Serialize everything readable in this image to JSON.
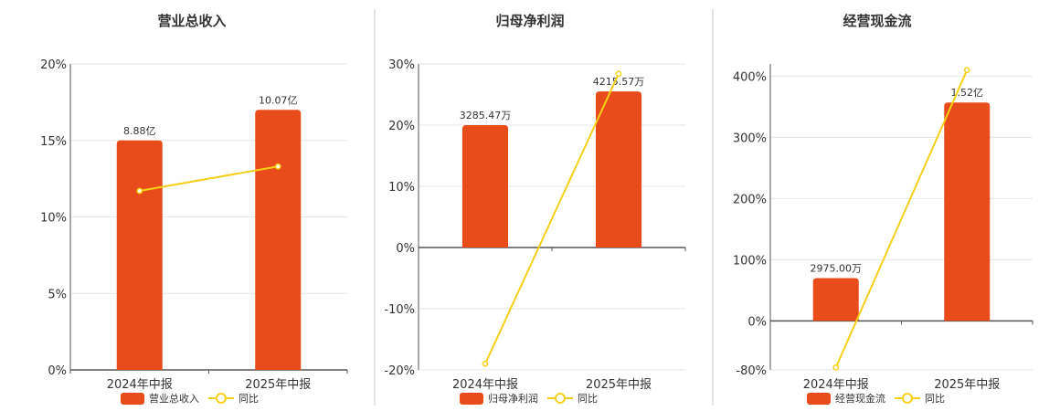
{
  "colors": {
    "bar": "#E84C1A",
    "line": "#F5D018",
    "grid": "#E6E6E6",
    "axis": "#555555",
    "divider": "#C8C8C8"
  },
  "chart_data": [
    {
      "type": "bar",
      "title": "营业总收入",
      "categories": [
        "2024年中报",
        "2025年中报"
      ],
      "ylim": [
        0,
        20
      ],
      "yticks": [
        "0%",
        "5%",
        "10%",
        "15%",
        "20%"
      ],
      "ytick_values": [
        0,
        5,
        10,
        15,
        20
      ],
      "grid": true,
      "series": [
        {
          "name": "营业总收入",
          "type": "bar",
          "values": [
            15,
            17
          ],
          "labels": [
            "8.88亿",
            "10.07亿"
          ]
        },
        {
          "name": "同比",
          "type": "line",
          "values": [
            11.7,
            13.3
          ]
        }
      ],
      "legend": "bottom"
    },
    {
      "type": "bar",
      "title": "归母净利润",
      "categories": [
        "2024年中报",
        "2025年中报"
      ],
      "ylim": [
        -20,
        30
      ],
      "yticks": [
        "-20%",
        "-10%",
        "0%",
        "10%",
        "20%",
        "30%"
      ],
      "ytick_values": [
        -20,
        -10,
        0,
        10,
        20,
        30
      ],
      "grid": true,
      "series": [
        {
          "name": "归母净利润",
          "type": "bar",
          "values": [
            20,
            25.5
          ],
          "labels": [
            "3285.47万",
            "4215.57万"
          ]
        },
        {
          "name": "同比",
          "type": "line",
          "values": [
            -19,
            28.4
          ]
        }
      ],
      "legend": "bottom"
    },
    {
      "type": "bar",
      "title": "经营现金流",
      "categories": [
        "2024年中报",
        "2025年中报"
      ],
      "ylim": [
        -80,
        420
      ],
      "yticks": [
        "-80%",
        "0%",
        "100%",
        "200%",
        "300%",
        "400%"
      ],
      "ytick_values": [
        -80,
        0,
        100,
        200,
        300,
        400
      ],
      "grid": true,
      "series": [
        {
          "name": "经营现金流",
          "type": "bar",
          "values": [
            70,
            357
          ],
          "labels": [
            "2975.00万",
            "1.52亿"
          ]
        },
        {
          "name": "同比",
          "type": "line",
          "values": [
            -76,
            410
          ]
        }
      ],
      "legend": "bottom"
    }
  ]
}
